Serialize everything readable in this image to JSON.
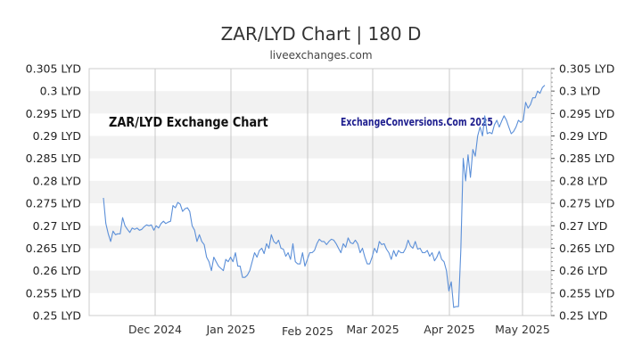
{
  "title": "ZAR/LYD Chart | 180 D",
  "subtitle": "liveexchanges.com",
  "chart_data": {
    "type": "line",
    "inner_title": "ZAR/LYD Exchange Chart",
    "watermark": "ExchangeConversions.Com 2025",
    "y_unit": "LYD",
    "ylim": [
      0.25,
      0.305
    ],
    "y_ticks": [
      "0.305 LYD",
      "0.3 LYD",
      "0.295 LYD",
      "0.29 LYD",
      "0.285 LYD",
      "0.28 LYD",
      "0.275 LYD",
      "0.27 LYD",
      "0.265 LYD",
      "0.26 LYD",
      "0.255 LYD",
      "0.25 LYD"
    ],
    "x_ticks": [
      "Dec 2024",
      "Jan 2025",
      "Feb 2025",
      "Mar 2025",
      "Apr 2025",
      "May 2025"
    ],
    "grid": "horizontal bands with vertical lines at month boundaries",
    "axes": "y-axis labels on both left and right",
    "line_color": "#5b8fd8",
    "series": [
      {
        "values": [
          0.2762,
          0.2705,
          0.2682,
          0.2665,
          0.2688,
          0.268,
          0.2682,
          0.2682,
          0.2718,
          0.27,
          0.2692,
          0.2685,
          0.2695,
          0.2692,
          0.2695,
          0.269,
          0.2692,
          0.2698,
          0.2702,
          0.27,
          0.2702,
          0.269,
          0.27,
          0.2695,
          0.2705,
          0.271,
          0.2705,
          0.2708,
          0.271,
          0.2745,
          0.274,
          0.2752,
          0.2748,
          0.2732,
          0.2738,
          0.274,
          0.2732,
          0.27,
          0.269,
          0.2665,
          0.268,
          0.2665,
          0.2658,
          0.263,
          0.262,
          0.26,
          0.263,
          0.262,
          0.261,
          0.2605,
          0.26,
          0.2625,
          0.262,
          0.263,
          0.262,
          0.264,
          0.261,
          0.261,
          0.2585,
          0.2585,
          0.259,
          0.26,
          0.262,
          0.264,
          0.263,
          0.2645,
          0.265,
          0.2638,
          0.266,
          0.265,
          0.268,
          0.2665,
          0.266,
          0.2668,
          0.265,
          0.2648,
          0.2632,
          0.264,
          0.2625,
          0.266,
          0.262,
          0.2615,
          0.2615,
          0.264,
          0.261,
          0.2625,
          0.264,
          0.264,
          0.2645,
          0.266,
          0.267,
          0.2665,
          0.2665,
          0.2658,
          0.2665,
          0.267,
          0.2668,
          0.266,
          0.265,
          0.264,
          0.266,
          0.2652,
          0.2673,
          0.2662,
          0.266,
          0.2668,
          0.266,
          0.264,
          0.265,
          0.263,
          0.2615,
          0.2615,
          0.263,
          0.265,
          0.264,
          0.2665,
          0.2658,
          0.266,
          0.2648,
          0.264,
          0.2625,
          0.2645,
          0.2632,
          0.2645,
          0.264,
          0.264,
          0.265,
          0.2668,
          0.2655,
          0.265,
          0.2665,
          0.2648,
          0.265,
          0.264,
          0.264,
          0.2645,
          0.2632,
          0.264,
          0.2622,
          0.263,
          0.2643,
          0.2625,
          0.262,
          0.26,
          0.2555,
          0.2575,
          0.2518,
          0.252,
          0.252,
          0.2645,
          0.285,
          0.28,
          0.2858,
          0.2808,
          0.287,
          0.2855,
          0.29,
          0.292,
          0.29,
          0.2945,
          0.2905,
          0.2908,
          0.2905,
          0.2925,
          0.2935,
          0.292,
          0.2933,
          0.2945,
          0.2935,
          0.292,
          0.2905,
          0.291,
          0.292,
          0.2935,
          0.293,
          0.2935,
          0.2975,
          0.2962,
          0.297,
          0.2985,
          0.2985,
          0.3,
          0.2995,
          0.3008,
          0.3013
        ]
      }
    ]
  }
}
